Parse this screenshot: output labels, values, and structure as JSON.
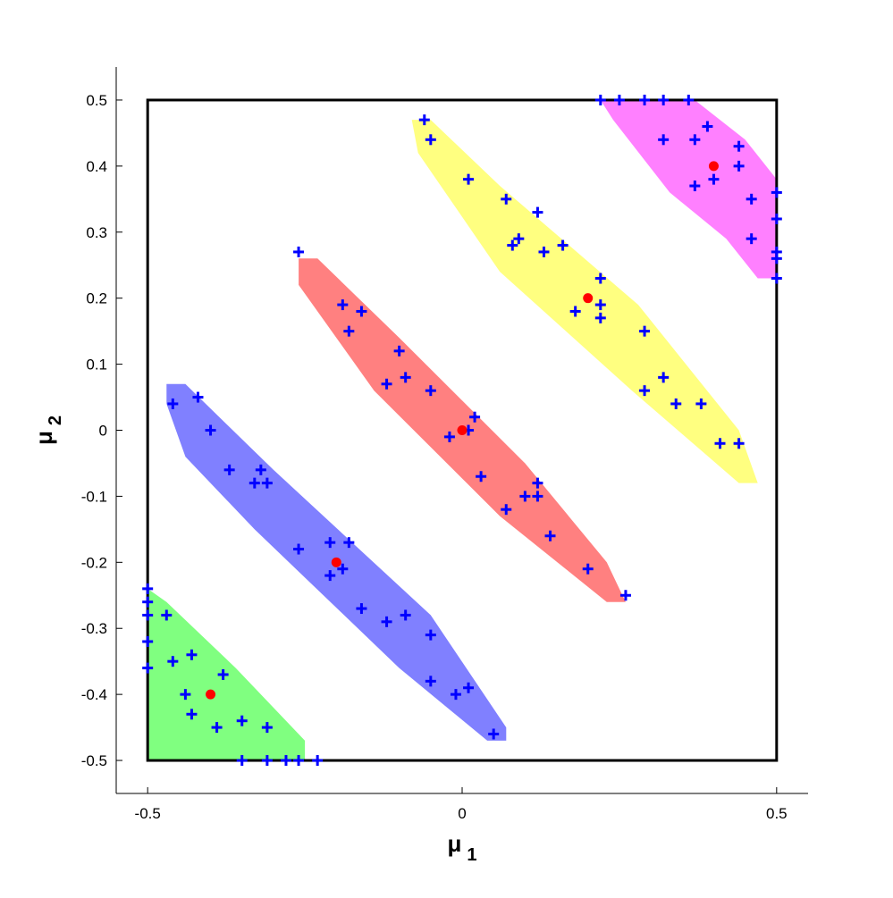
{
  "chart_data": {
    "type": "scatter",
    "title": "",
    "xlabel": "μ",
    "xlabel_subscript": "1",
    "ylabel": "μ",
    "ylabel_subscript": "2",
    "xlim": [
      -0.55,
      0.55
    ],
    "ylim": [
      -0.55,
      0.55
    ],
    "x_ticks": [
      -0.5,
      0,
      0.5
    ],
    "x_tick_labels": [
      "-0.5",
      "0",
      "0.5"
    ],
    "y_ticks": [
      0.5,
      0.4,
      0.3,
      0.2,
      0.1,
      0,
      -0.1,
      -0.2,
      -0.3,
      -0.4,
      -0.5
    ],
    "y_tick_labels": [
      "0.5",
      "0.4",
      "0.3",
      "0.2",
      "0.1",
      "0",
      "-0.1",
      "-0.2",
      "-0.3",
      "-0.4",
      "-0.5"
    ],
    "grid": false,
    "legend": "none",
    "boundary_box": {
      "x": [
        -0.5,
        0.5
      ],
      "y": [
        -0.5,
        0.5
      ],
      "color": "#000000"
    },
    "regions": [
      {
        "color": "#80ff80",
        "polygon": [
          [
            -0.5,
            -0.24
          ],
          [
            -0.47,
            -0.26
          ],
          [
            -0.36,
            -0.36
          ],
          [
            -0.25,
            -0.47
          ],
          [
            -0.25,
            -0.5
          ],
          [
            -0.5,
            -0.5
          ]
        ]
      },
      {
        "color": "#8080ff",
        "polygon": [
          [
            -0.47,
            0.07
          ],
          [
            -0.44,
            0.07
          ],
          [
            -0.3,
            -0.06
          ],
          [
            -0.05,
            -0.28
          ],
          [
            0.07,
            -0.45
          ],
          [
            0.07,
            -0.47
          ],
          [
            0.04,
            -0.47
          ],
          [
            -0.1,
            -0.36
          ],
          [
            -0.33,
            -0.15
          ],
          [
            -0.44,
            -0.04
          ],
          [
            -0.47,
            0.04
          ]
        ]
      },
      {
        "color": "#ff8080",
        "polygon": [
          [
            -0.26,
            0.26
          ],
          [
            -0.23,
            0.26
          ],
          [
            -0.1,
            0.14
          ],
          [
            0.1,
            -0.05
          ],
          [
            0.23,
            -0.2
          ],
          [
            0.26,
            -0.26
          ],
          [
            0.23,
            -0.26
          ],
          [
            0.06,
            -0.13
          ],
          [
            -0.14,
            0.06
          ],
          [
            -0.26,
            0.22
          ]
        ]
      },
      {
        "color": "#ffff80",
        "polygon": [
          [
            -0.08,
            0.47
          ],
          [
            -0.05,
            0.47
          ],
          [
            0.06,
            0.37
          ],
          [
            0.28,
            0.19
          ],
          [
            0.44,
            0.0
          ],
          [
            0.47,
            -0.08
          ],
          [
            0.44,
            -0.08
          ],
          [
            0.27,
            0.06
          ],
          [
            0.06,
            0.24
          ],
          [
            -0.07,
            0.42
          ]
        ]
      },
      {
        "color": "#ff80ff",
        "polygon": [
          [
            0.22,
            0.5
          ],
          [
            0.37,
            0.5
          ],
          [
            0.45,
            0.44
          ],
          [
            0.5,
            0.38
          ],
          [
            0.5,
            0.23
          ],
          [
            0.47,
            0.23
          ],
          [
            0.42,
            0.29
          ],
          [
            0.33,
            0.36
          ],
          [
            0.24,
            0.47
          ]
        ]
      }
    ],
    "series": [
      {
        "marker": "plus",
        "color": "#0000ff",
        "points": [
          [
            -0.5,
            -0.24
          ],
          [
            -0.5,
            -0.26
          ],
          [
            -0.5,
            -0.28
          ],
          [
            -0.5,
            -0.32
          ],
          [
            -0.5,
            -0.36
          ],
          [
            -0.47,
            -0.28
          ],
          [
            -0.46,
            -0.35
          ],
          [
            -0.43,
            -0.34
          ],
          [
            -0.44,
            -0.4
          ],
          [
            -0.43,
            -0.43
          ],
          [
            -0.38,
            -0.37
          ],
          [
            -0.39,
            -0.45
          ],
          [
            -0.35,
            -0.44
          ],
          [
            -0.31,
            -0.45
          ],
          [
            -0.35,
            -0.5
          ],
          [
            -0.31,
            -0.5
          ],
          [
            -0.28,
            -0.5
          ],
          [
            -0.26,
            -0.5
          ],
          [
            -0.23,
            -0.5
          ],
          [
            -0.46,
            0.04
          ],
          [
            -0.42,
            0.05
          ],
          [
            -0.4,
            0.0
          ],
          [
            -0.37,
            -0.06
          ],
          [
            -0.32,
            -0.06
          ],
          [
            -0.33,
            -0.08
          ],
          [
            -0.31,
            -0.08
          ],
          [
            -0.26,
            -0.18
          ],
          [
            -0.21,
            -0.17
          ],
          [
            -0.18,
            -0.17
          ],
          [
            -0.21,
            -0.22
          ],
          [
            -0.19,
            -0.21
          ],
          [
            -0.16,
            -0.27
          ],
          [
            -0.12,
            -0.29
          ],
          [
            -0.09,
            -0.28
          ],
          [
            -0.05,
            -0.31
          ],
          [
            -0.05,
            -0.38
          ],
          [
            -0.01,
            -0.4
          ],
          [
            0.01,
            -0.39
          ],
          [
            0.05,
            -0.46
          ],
          [
            -0.26,
            0.27
          ],
          [
            -0.19,
            0.19
          ],
          [
            -0.16,
            0.18
          ],
          [
            -0.18,
            0.15
          ],
          [
            -0.1,
            0.12
          ],
          [
            -0.12,
            0.07
          ],
          [
            -0.09,
            0.08
          ],
          [
            -0.05,
            0.06
          ],
          [
            0.02,
            0.02
          ],
          [
            0.01,
            0.0
          ],
          [
            -0.02,
            -0.01
          ],
          [
            0.03,
            -0.07
          ],
          [
            0.12,
            -0.08
          ],
          [
            0.12,
            -0.1
          ],
          [
            0.1,
            -0.1
          ],
          [
            0.07,
            -0.12
          ],
          [
            0.14,
            -0.16
          ],
          [
            0.2,
            -0.21
          ],
          [
            0.26,
            -0.25
          ],
          [
            -0.06,
            0.47
          ],
          [
            -0.05,
            0.44
          ],
          [
            0.01,
            0.38
          ],
          [
            0.07,
            0.35
          ],
          [
            0.12,
            0.33
          ],
          [
            0.09,
            0.29
          ],
          [
            0.08,
            0.28
          ],
          [
            0.13,
            0.27
          ],
          [
            0.16,
            0.28
          ],
          [
            0.22,
            0.23
          ],
          [
            0.22,
            0.19
          ],
          [
            0.22,
            0.17
          ],
          [
            0.18,
            0.18
          ],
          [
            0.29,
            0.15
          ],
          [
            0.29,
            0.06
          ],
          [
            0.32,
            0.08
          ],
          [
            0.34,
            0.04
          ],
          [
            0.38,
            0.04
          ],
          [
            0.41,
            -0.02
          ],
          [
            0.44,
            -0.02
          ],
          [
            0.22,
            0.5
          ],
          [
            0.25,
            0.5
          ],
          [
            0.29,
            0.5
          ],
          [
            0.32,
            0.5
          ],
          [
            0.36,
            0.5
          ],
          [
            0.39,
            0.46
          ],
          [
            0.32,
            0.44
          ],
          [
            0.37,
            0.44
          ],
          [
            0.44,
            0.43
          ],
          [
            0.44,
            0.4
          ],
          [
            0.37,
            0.37
          ],
          [
            0.4,
            0.38
          ],
          [
            0.46,
            0.35
          ],
          [
            0.46,
            0.29
          ],
          [
            0.5,
            0.36
          ],
          [
            0.5,
            0.32
          ],
          [
            0.5,
            0.27
          ],
          [
            0.5,
            0.26
          ],
          [
            0.5,
            0.23
          ]
        ]
      },
      {
        "marker": "circle",
        "color": "#ff0000",
        "points": [
          [
            -0.4,
            -0.4
          ],
          [
            -0.2,
            -0.2
          ],
          [
            0,
            0
          ],
          [
            0.2,
            0.2
          ],
          [
            0.4,
            0.4
          ]
        ]
      }
    ]
  }
}
